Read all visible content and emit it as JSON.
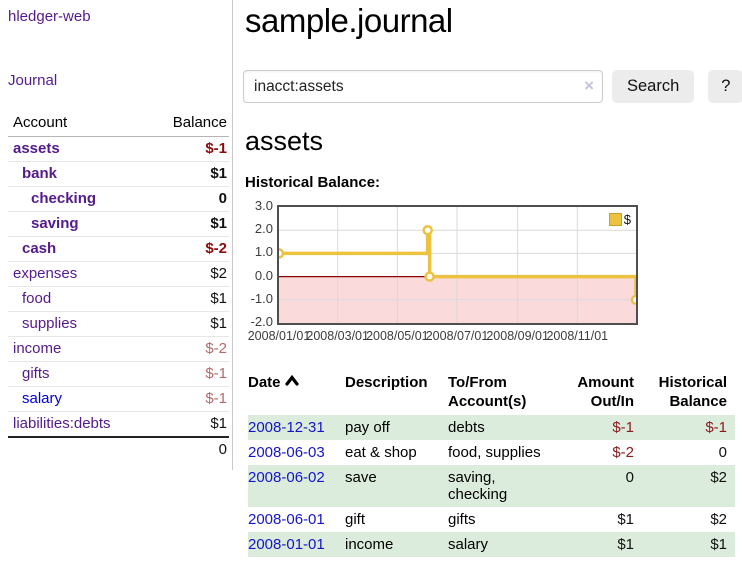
{
  "sidebar": {
    "app_title": "hledger-web",
    "journal_link": "Journal",
    "accounts_table": {
      "headers": {
        "account": "Account",
        "balance": "Balance"
      },
      "rows": [
        {
          "account": "assets",
          "balance": "$-1",
          "indent": 1,
          "bold": true,
          "balance_class": "neg-strong"
        },
        {
          "account": "bank",
          "balance": "$1",
          "indent": 2,
          "bold": true,
          "balance_class": "pos"
        },
        {
          "account": "checking",
          "balance": "0",
          "indent": 3,
          "bold": true,
          "balance_class": "pos"
        },
        {
          "account": "saving",
          "balance": "$1",
          "indent": 3,
          "bold": true,
          "balance_class": "pos"
        },
        {
          "account": "cash",
          "balance": "$-2",
          "indent": 2,
          "bold": true,
          "balance_class": "neg-strong"
        },
        {
          "account": "expenses",
          "balance": "$2",
          "indent": 1,
          "bold": false,
          "balance_class": "pos"
        },
        {
          "account": "food",
          "balance": "$1",
          "indent": 2,
          "bold": false,
          "balance_class": "pos"
        },
        {
          "account": "supplies",
          "balance": "$1",
          "indent": 2,
          "bold": false,
          "balance_class": "pos"
        },
        {
          "account": "income",
          "balance": "$-2",
          "indent": 1,
          "bold": false,
          "balance_class": "neg-muted"
        },
        {
          "account": "gifts",
          "balance": "$-1",
          "indent": 2,
          "bold": false,
          "balance_class": "neg-muted"
        },
        {
          "account": "salary",
          "balance": "$-1",
          "indent": 2,
          "bold": false,
          "balance_class": "neg-muted",
          "link_color": "blue"
        },
        {
          "account": "liabilities:debts",
          "balance": "$1",
          "indent": 1,
          "bold": false,
          "balance_class": "pos"
        }
      ],
      "total": "0"
    }
  },
  "header": {
    "title": "sample.journal"
  },
  "search": {
    "value": "inacct:assets",
    "clear_icon": "×",
    "button_label": "Search",
    "help_label": "?"
  },
  "account_page": {
    "title": "assets",
    "chart_label": "Historical Balance:"
  },
  "chart_data": {
    "type": "line",
    "step": true,
    "title": "Historical Balance",
    "series": [
      {
        "name": "$",
        "color": "#edc240",
        "points": [
          [
            "2008-01-01",
            1
          ],
          [
            "2008-06-01",
            2
          ],
          [
            "2008-06-03",
            0
          ],
          [
            "2008-12-31",
            -1
          ]
        ]
      }
    ],
    "xlim": [
      "2008-01-01",
      "2008-12-31"
    ],
    "ylim": [
      -2,
      3
    ],
    "ytick_values": [
      3,
      2,
      1,
      0,
      -1,
      -2
    ],
    "ytick_labels": [
      "3.0",
      "2.0",
      "1.0",
      "0.0",
      "-1.0",
      "-2.0"
    ],
    "xtick_values": [
      "2008-01-01",
      "2008-03-01",
      "2008-05-01",
      "2008-07-01",
      "2008-09-01",
      "2008-11-01"
    ],
    "xtick_labels": [
      "2008/01/01",
      "2008/03/01",
      "2008/05/01",
      "2008/07/01",
      "2008/09/01",
      "2008/11/01"
    ],
    "legend": {
      "label": "$",
      "position": "top-right"
    },
    "grid": true,
    "gridline_color": "#d9d9d9",
    "zero_line_color": "#8b0000",
    "negative_region_color": "#fadada"
  },
  "register_table": {
    "headers": {
      "date": "Date",
      "description": "Description",
      "accounts": "To/From Account(s)",
      "amount": "Amount Out/In",
      "balance": "Historical Balance"
    },
    "sort_icon": "chevron-up",
    "rows": [
      {
        "date": "2008-12-31",
        "description": "pay off",
        "accounts": "debts",
        "amount": "$-1",
        "amount_neg": true,
        "balance": "$-1",
        "balance_neg": true
      },
      {
        "date": "2008-06-03",
        "description": "eat & shop",
        "accounts": "food, supplies",
        "amount": "$-2",
        "amount_neg": true,
        "balance": "0",
        "balance_neg": false
      },
      {
        "date": "2008-06-02",
        "description": "save",
        "accounts": "saving, checking",
        "amount": "0",
        "amount_neg": false,
        "balance": "$2",
        "balance_neg": false
      },
      {
        "date": "2008-06-01",
        "description": "gift",
        "accounts": "gifts",
        "amount": "$1",
        "amount_neg": false,
        "balance": "$2",
        "balance_neg": false
      },
      {
        "date": "2008-01-01",
        "description": "income",
        "accounts": "salary",
        "amount": "$1",
        "amount_neg": false,
        "balance": "$1",
        "balance_neg": false
      }
    ]
  },
  "colors": {
    "link_purple": "#551a8b",
    "link_blue": "#1414cd",
    "negative_strong": "#8b0b0b",
    "negative_muted": "#b36a6a",
    "row_stripe_green": "#dcecdc",
    "series_yellow": "#edc240"
  }
}
